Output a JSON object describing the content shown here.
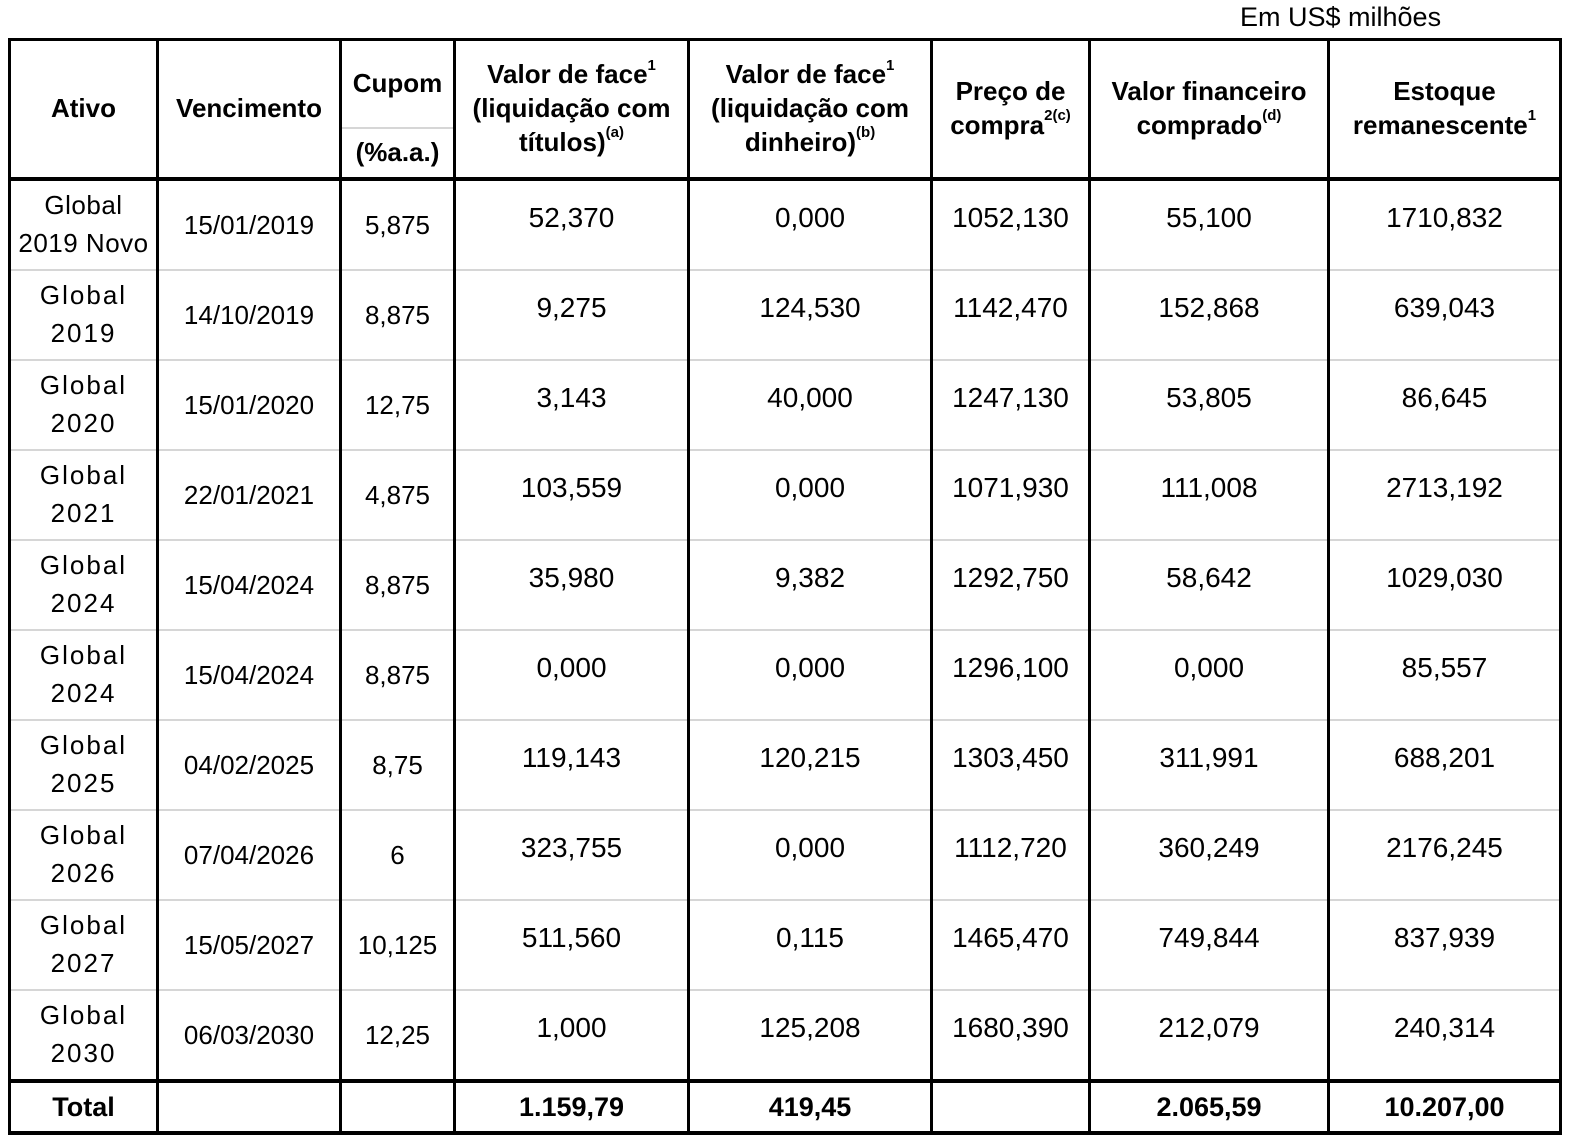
{
  "unit_note": "Em US$ milhões",
  "headers": {
    "ativo": "Ativo",
    "vencimento": "Vencimento",
    "cupom": "Cupom",
    "cupom_unit": "(%a.a.)",
    "face_titulos": {
      "line1": "Valor de face",
      "line1_sup": "1",
      "line2": "(liquidação com",
      "line3": "títulos)",
      "line3_sup": "(a)"
    },
    "face_dinheiro": {
      "line1": "Valor de face",
      "line1_sup": "1",
      "line2": "(liquidação com",
      "line3": "dinheiro)",
      "line3_sup": "(b)"
    },
    "preco": {
      "line1": "Preço de",
      "line2": "compra",
      "line2_sup": "2(c)"
    },
    "financeiro": {
      "line1": "Valor financeiro",
      "line2": "comprado",
      "line2_sup": "(d)"
    },
    "estoque": {
      "line1": "Estoque",
      "line2": "remanescente",
      "line2_sup": "1"
    }
  },
  "rows": [
    {
      "ativo_l1": "Global",
      "ativo_l2": "2019 Novo",
      "vencimento": "15/01/2019",
      "cupom": "5,875",
      "face_titulos": "52,370",
      "face_dinheiro": "0,000",
      "preco": "1052,130",
      "financeiro": "55,100",
      "estoque": "1710,832"
    },
    {
      "ativo_l1": "Global",
      "ativo_l2": "2019",
      "vencimento": "14/10/2019",
      "cupom": "8,875",
      "face_titulos": "9,275",
      "face_dinheiro": "124,530",
      "preco": "1142,470",
      "financeiro": "152,868",
      "estoque": "639,043"
    },
    {
      "ativo_l1": "Global",
      "ativo_l2": "2020",
      "vencimento": "15/01/2020",
      "cupom": "12,75",
      "face_titulos": "3,143",
      "face_dinheiro": "40,000",
      "preco": "1247,130",
      "financeiro": "53,805",
      "estoque": "86,645"
    },
    {
      "ativo_l1": "Global",
      "ativo_l2": "2021",
      "vencimento": "22/01/2021",
      "cupom": "4,875",
      "face_titulos": "103,559",
      "face_dinheiro": "0,000",
      "preco": "1071,930",
      "financeiro": "111,008",
      "estoque": "2713,192"
    },
    {
      "ativo_l1": "Global",
      "ativo_l2": "2024",
      "vencimento": "15/04/2024",
      "cupom": "8,875",
      "face_titulos": "35,980",
      "face_dinheiro": "9,382",
      "preco": "1292,750",
      "financeiro": "58,642",
      "estoque": "1029,030"
    },
    {
      "ativo_l1": "Global",
      "ativo_l2": "2024",
      "vencimento": "15/04/2024",
      "cupom": "8,875",
      "face_titulos": "0,000",
      "face_dinheiro": "0,000",
      "preco": "1296,100",
      "financeiro": "0,000",
      "estoque": "85,557"
    },
    {
      "ativo_l1": "Global",
      "ativo_l2": "2025",
      "vencimento": "04/02/2025",
      "cupom": "8,75",
      "face_titulos": "119,143",
      "face_dinheiro": "120,215",
      "preco": "1303,450",
      "financeiro": "311,991",
      "estoque": "688,201"
    },
    {
      "ativo_l1": "Global",
      "ativo_l2": "2026",
      "vencimento": "07/04/2026",
      "cupom": "6",
      "face_titulos": "323,755",
      "face_dinheiro": "0,000",
      "preco": "1112,720",
      "financeiro": "360,249",
      "estoque": "2176,245"
    },
    {
      "ativo_l1": "Global",
      "ativo_l2": "2027",
      "vencimento": "15/05/2027",
      "cupom": "10,125",
      "face_titulos": "511,560",
      "face_dinheiro": "0,115",
      "preco": "1465,470",
      "financeiro": "749,844",
      "estoque": "837,939"
    },
    {
      "ativo_l1": "Global",
      "ativo_l2": "2030",
      "vencimento": "06/03/2030",
      "cupom": "12,25",
      "face_titulos": "1,000",
      "face_dinheiro": "125,208",
      "preco": "1680,390",
      "financeiro": "212,079",
      "estoque": "240,314"
    }
  ],
  "total": {
    "label": "Total",
    "vencimento": "",
    "cupom": "",
    "face_titulos": "1.159,79",
    "face_dinheiro": "419,45",
    "preco": "",
    "financeiro": "2.065,59",
    "estoque": "10.207,00"
  }
}
